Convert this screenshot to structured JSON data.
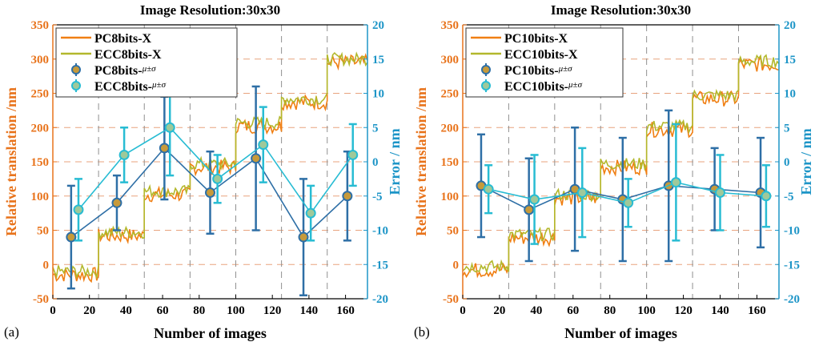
{
  "colors": {
    "orange": "#F07F13",
    "olive": "#B3B82C",
    "blue": "#2E6FA6",
    "cyan": "#28BCD3",
    "cyanAxis": "#1D95C7",
    "orangeAxis": "#E8731B",
    "grid": "#E8A37E",
    "vgrid": "#909090",
    "marker": "#C79A3A"
  },
  "chart_data": [
    {
      "type": "line",
      "panel_label": "(a)",
      "title": "Image Resolution:30x30",
      "xlabel": "Number of images",
      "ylabel_left": "Relative translation /nm",
      "ylabel_right": "Error / nm",
      "xlim": [
        0,
        172
      ],
      "ylim_left": [
        -50,
        350
      ],
      "ylim_right": [
        -20,
        20
      ],
      "xticks": [
        0,
        20,
        40,
        60,
        80,
        100,
        120,
        140,
        160
      ],
      "yticks_left": [
        -50,
        0,
        50,
        100,
        150,
        200,
        250,
        300,
        350
      ],
      "yticks_right": [
        -20,
        -15,
        -10,
        -5,
        0,
        5,
        10,
        15,
        20
      ],
      "vgrid_x": [
        25,
        50,
        75,
        100,
        125,
        150
      ],
      "hgrid_left": [
        0,
        50,
        100,
        150,
        200,
        250,
        300
      ],
      "legend": {
        "line1": "PC8bits-X",
        "line2": "ECC8bits-X",
        "err1": "PC8bits-",
        "err2": "ECC8bits-",
        "suffix": "μ±σ"
      },
      "steps": [
        {
          "x0": 0,
          "x1": 25,
          "y": -12
        },
        {
          "x0": 25,
          "x1": 50,
          "y": 45
        },
        {
          "x0": 50,
          "x1": 75,
          "y": 105
        },
        {
          "x0": 75,
          "x1": 100,
          "y": 145
        },
        {
          "x0": 100,
          "x1": 125,
          "y": 205
        },
        {
          "x0": 125,
          "x1": 150,
          "y": 240
        },
        {
          "x0": 150,
          "x1": 172,
          "y": 298
        }
      ],
      "series": [
        {
          "name": "PC8bits-",
          "x": [
            10,
            35,
            61,
            86,
            111,
            137,
            161
          ],
          "mean": [
            -11,
            -6,
            2,
            -4.5,
            0.5,
            -11,
            -5
          ],
          "std": [
            7.5,
            4,
            7.5,
            6,
            10.5,
            8.5,
            6.5
          ]
        },
        {
          "name": "ECC8bits-",
          "x": [
            14,
            39,
            64,
            90,
            115,
            141,
            164
          ],
          "mean": [
            -7,
            1,
            5,
            -2.5,
            2.5,
            -7.5,
            1
          ],
          "std": [
            4.5,
            4,
            7,
            3.5,
            5.5,
            4,
            4.5
          ]
        }
      ]
    },
    {
      "type": "line",
      "panel_label": "(b)",
      "title": "Image Resolution:30x30",
      "xlabel": "Number of images",
      "ylabel_left": "Relative translation /nm",
      "ylabel_right": "Error / nm",
      "xlim": [
        0,
        172
      ],
      "ylim_left": [
        -50,
        350
      ],
      "ylim_right": [
        -20,
        20
      ],
      "xticks": [
        0,
        20,
        40,
        60,
        80,
        100,
        120,
        140,
        160
      ],
      "yticks_left": [
        -50,
        0,
        50,
        100,
        150,
        200,
        250,
        300,
        350
      ],
      "yticks_right": [
        -20,
        -15,
        -10,
        -5,
        0,
        5,
        10,
        15,
        20
      ],
      "vgrid_x": [
        25,
        50,
        75,
        100,
        125,
        150
      ],
      "hgrid_left": [
        0,
        50,
        100,
        150,
        200,
        250,
        300
      ],
      "legend": {
        "line1": "PC10bits-X",
        "line2": "ECC10bits-X",
        "err1": "PC10bits-",
        "err2": "ECC10bits-",
        "suffix": "μ±σ"
      },
      "steps": [
        {
          "x0": 0,
          "x1": 25,
          "y": -5
        },
        {
          "x0": 25,
          "x1": 50,
          "y": 42
        },
        {
          "x0": 50,
          "x1": 75,
          "y": 100
        },
        {
          "x0": 75,
          "x1": 100,
          "y": 145
        },
        {
          "x0": 100,
          "x1": 125,
          "y": 200
        },
        {
          "x0": 125,
          "x1": 150,
          "y": 245
        },
        {
          "x0": 150,
          "x1": 172,
          "y": 295
        }
      ],
      "series": [
        {
          "name": "PC10bits-",
          "x": [
            10,
            36,
            61,
            87,
            112,
            137,
            162
          ],
          "mean": [
            -3.5,
            -7,
            -4,
            -5.5,
            -3.5,
            -4,
            -4.5
          ],
          "std": [
            7.5,
            7.5,
            9,
            9,
            11,
            6,
            8
          ]
        },
        {
          "name": "ECC10bits-",
          "x": [
            14,
            39,
            65,
            90,
            116,
            140,
            165
          ],
          "mean": [
            -4,
            -5.5,
            -4.5,
            -6,
            -3,
            -4.5,
            -5
          ],
          "std": [
            3.5,
            6.5,
            6.5,
            3.5,
            8.5,
            5.5,
            4.5
          ]
        }
      ]
    }
  ]
}
